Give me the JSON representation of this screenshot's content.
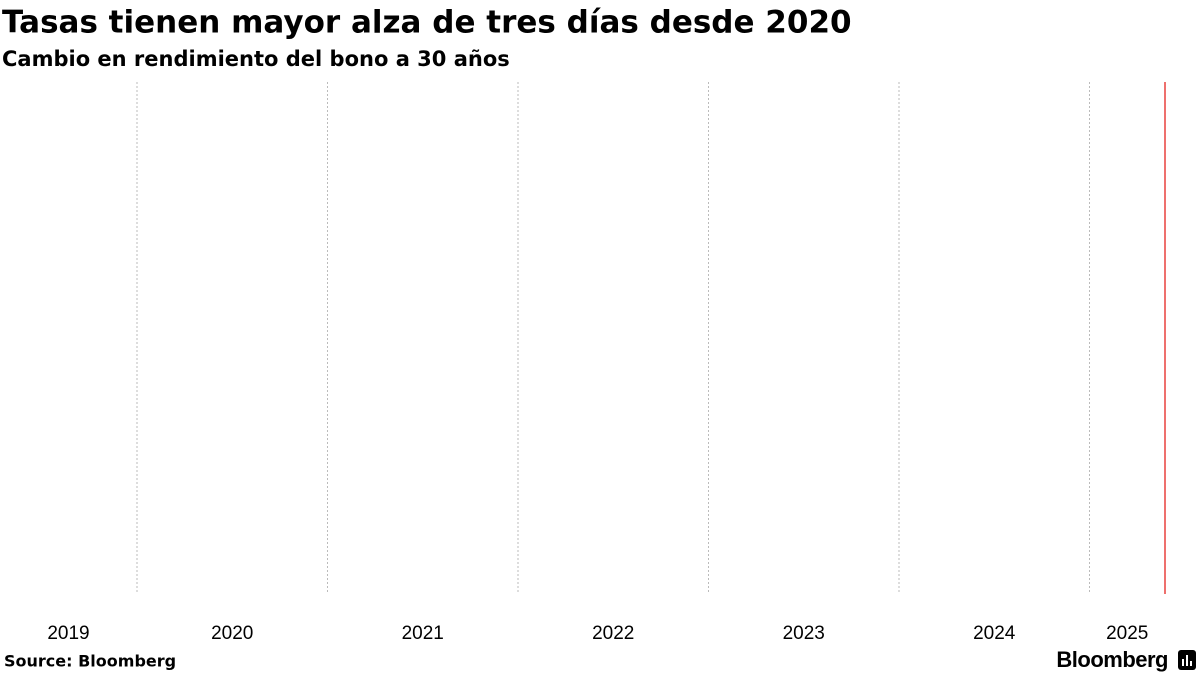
{
  "chart_data": {
    "type": "line",
    "title": "Tasas tienen mayor alza de tres días desde 2020",
    "subtitle": "Cambio en rendimiento del bono a 30 años",
    "categories": [
      "2019",
      "2020",
      "2021",
      "2022",
      "2023",
      "2024",
      "2025"
    ],
    "grid": true,
    "end_line_color": "#e8413d",
    "source": "Source: Bloomberg",
    "logo": "Bloomberg"
  }
}
